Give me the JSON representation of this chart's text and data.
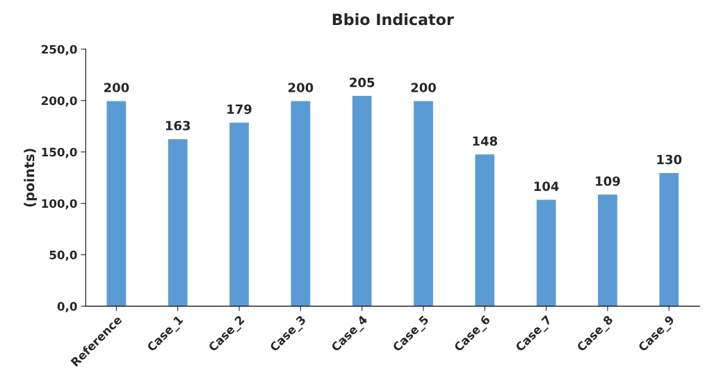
{
  "chart_data": {
    "type": "bar",
    "title": "Bbio Indicator",
    "ylabel": "(points)",
    "categories": [
      "Reference",
      "Case_1",
      "Case_2",
      "Case_3",
      "Case_4",
      "Case_5",
      "Case_6",
      "Case_7",
      "Case_8",
      "Case_9"
    ],
    "values": [
      200,
      163,
      179,
      200,
      205,
      200,
      148,
      104,
      109,
      130
    ],
    "color": "#5b9bd5",
    "data_labels": true,
    "grid": false,
    "ylim": [
      0,
      250
    ],
    "yticks": [
      {
        "value": 0,
        "label": "0,0"
      },
      {
        "value": 50,
        "label": "50,0"
      },
      {
        "value": 100,
        "label": "100,0"
      },
      {
        "value": 150,
        "label": "150,0"
      },
      {
        "value": 200,
        "label": "200,0"
      },
      {
        "value": 250,
        "label": "250,0"
      }
    ]
  }
}
